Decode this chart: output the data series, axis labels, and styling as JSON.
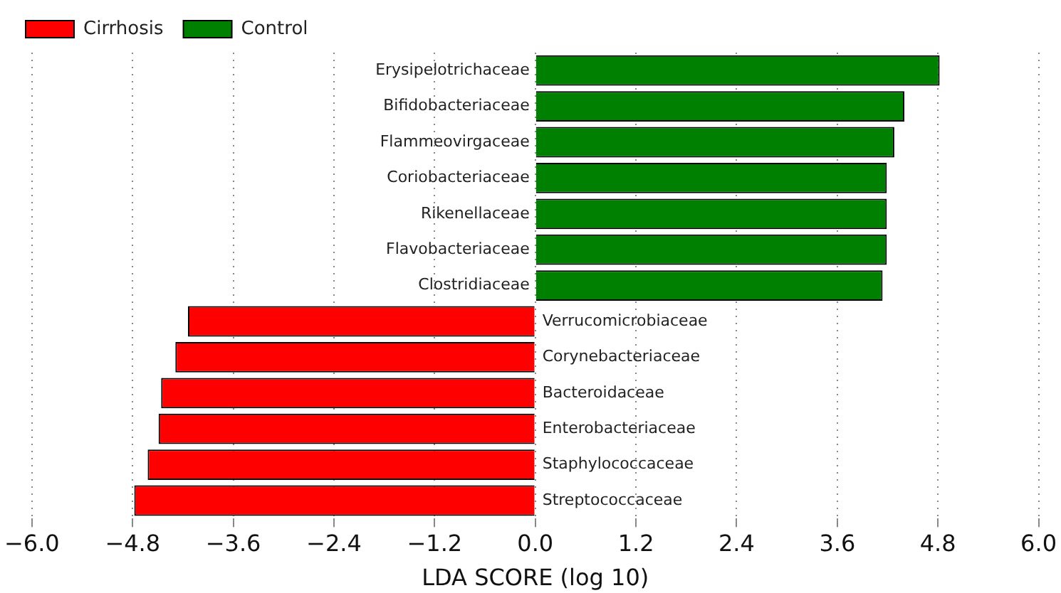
{
  "chart_data": {
    "type": "bar",
    "orientation": "horizontal",
    "xlabel": "LDA SCORE (log 10)",
    "categories": [
      "Erysipelotrichaceae",
      "Bifidobacteriaceae",
      "Flammeovirgaceae",
      "Coriobacteriaceae",
      "Rikenellaceae",
      "Flavobacteriaceae",
      "Clostridiaceae",
      "Verrucomicrobiaceae",
      "Corynebacteriaceae",
      "Bacteroidaceae",
      "Enterobacteriaceae",
      "Staphylococcaceae",
      "Streptococcaceae"
    ],
    "series": [
      {
        "name": "Cirrhosis",
        "color": "#ff0000",
        "values": [
          null,
          null,
          null,
          null,
          null,
          null,
          null,
          -4.14,
          -4.29,
          -4.46,
          -4.49,
          -4.62,
          -4.78
        ]
      },
      {
        "name": "Control",
        "color": "#008000",
        "values": [
          4.82,
          4.4,
          4.28,
          4.19,
          4.19,
          4.19,
          4.14,
          null,
          null,
          null,
          null,
          null,
          null
        ]
      }
    ],
    "xlim": [
      -6.0,
      6.0
    ],
    "xticks": [
      {
        "value": -6,
        "label": "−6.0"
      },
      {
        "value": -4.8,
        "label": "−4.8"
      },
      {
        "value": -3.6,
        "label": "−3.6"
      },
      {
        "value": -2.4,
        "label": "−2.4"
      },
      {
        "value": -1.2,
        "label": "−1.2"
      },
      {
        "value": 0,
        "label": "0.0"
      },
      {
        "value": 1.2,
        "label": "1.2"
      },
      {
        "value": 2.4,
        "label": "2.4"
      },
      {
        "value": 3.6,
        "label": "3.6"
      },
      {
        "value": 4.8,
        "label": "4.8"
      },
      {
        "value": 6,
        "label": "6.0"
      }
    ],
    "grid": "x",
    "legend": "top left"
  }
}
